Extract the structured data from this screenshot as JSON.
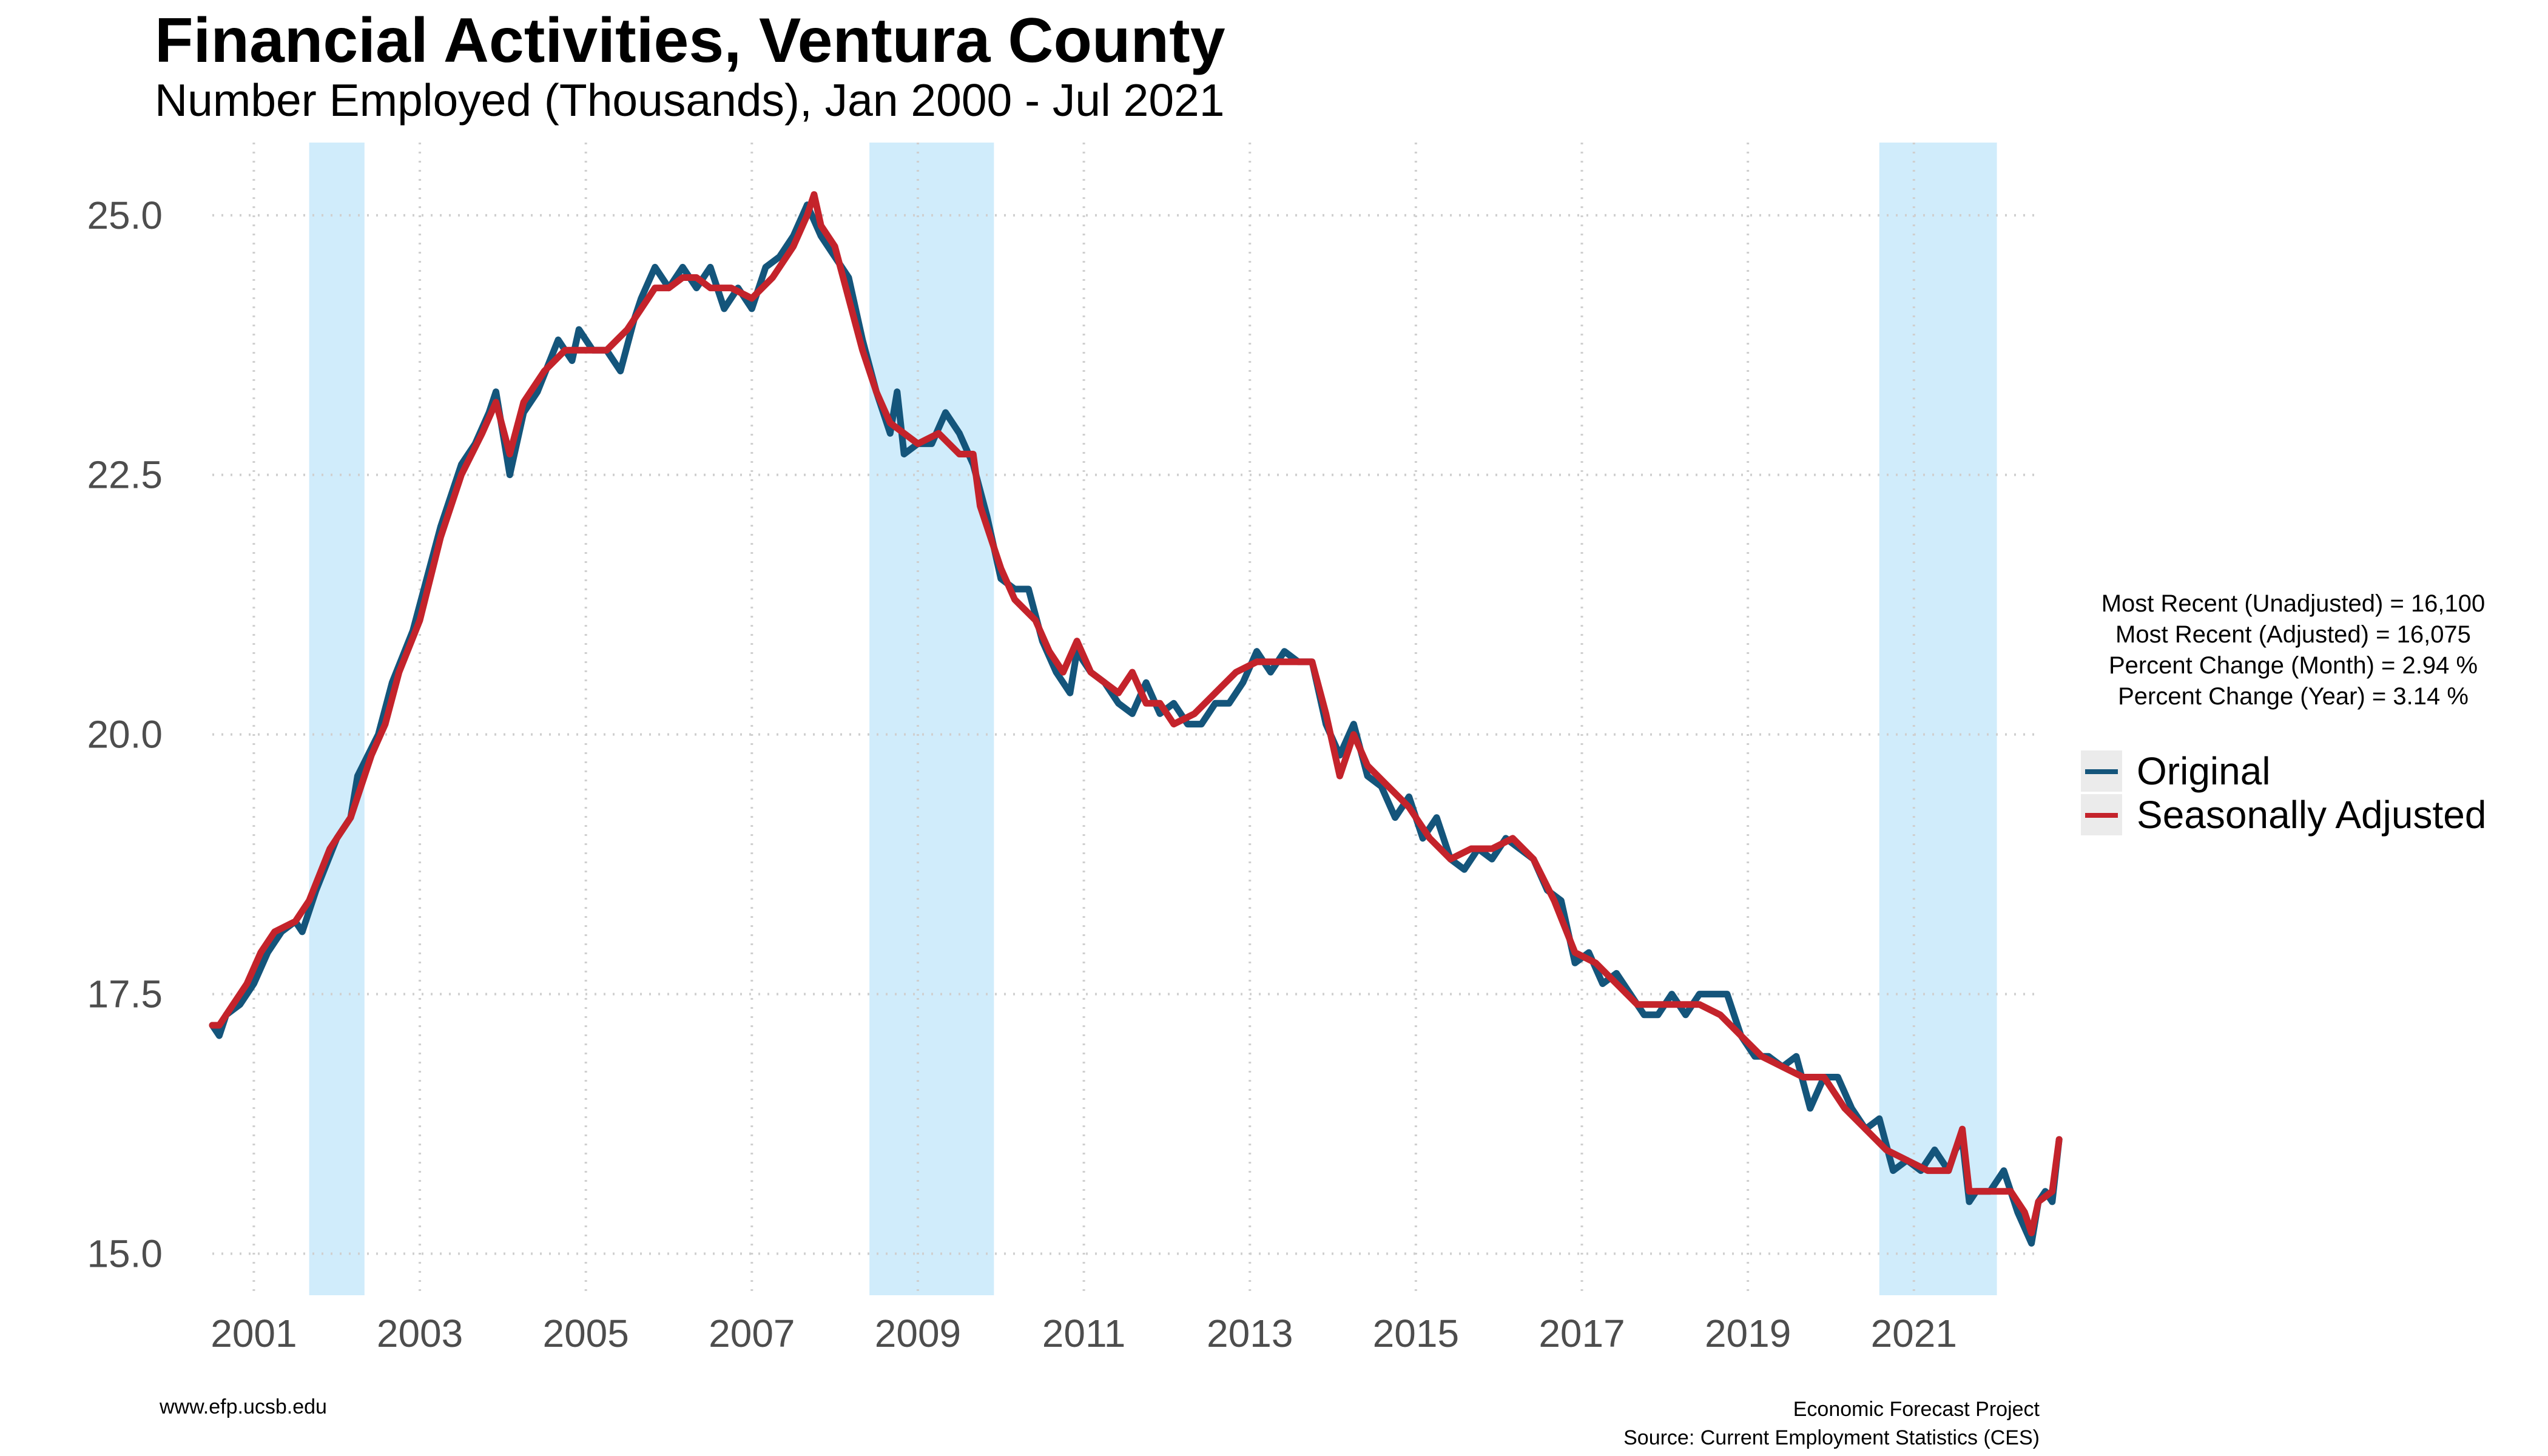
{
  "chart_data": {
    "type": "line",
    "title": "Financial Activities, Ventura County",
    "subtitle": "Number Employed (Thousands), Jan 2000 - Jul 2021",
    "ylim": [
      14.6,
      25.7
    ],
    "xlim": [
      "2000-01",
      "2022-01"
    ],
    "y_ticks": [
      "15.0",
      "17.5",
      "20.0",
      "22.5",
      "25.0"
    ],
    "y_tick_values": [
      15.0,
      17.5,
      20.0,
      22.5,
      25.0
    ],
    "x_ticks": [
      "2001",
      "2003",
      "2005",
      "2007",
      "2009",
      "2011",
      "2013",
      "2015",
      "2017",
      "2019",
      "2021"
    ],
    "grid": true,
    "legend_position": "right",
    "recession_shading": [
      {
        "start": "2001-03",
        "end": "2001-11"
      },
      {
        "start": "2007-12",
        "end": "2009-06"
      },
      {
        "start": "2020-02",
        "end": "2021-07"
      }
    ],
    "recession_color": "#d0ecfb",
    "series": [
      {
        "name": "Original",
        "color": "#14557b",
        "points": [
          [
            "2000-01",
            17.2
          ],
          [
            "2000-02",
            17.1
          ],
          [
            "2000-03",
            17.3
          ],
          [
            "2000-05",
            17.4
          ],
          [
            "2000-07",
            17.6
          ],
          [
            "2000-09",
            17.9
          ],
          [
            "2000-11",
            18.1
          ],
          [
            "2001-01",
            18.2
          ],
          [
            "2001-02",
            18.1
          ],
          [
            "2001-04",
            18.5
          ],
          [
            "2001-07",
            19.0
          ],
          [
            "2001-09",
            19.2
          ],
          [
            "2001-10",
            19.6
          ],
          [
            "2002-01",
            20.0
          ],
          [
            "2002-03",
            20.5
          ],
          [
            "2002-06",
            21.0
          ],
          [
            "2002-08",
            21.5
          ],
          [
            "2002-10",
            22.0
          ],
          [
            "2003-01",
            22.6
          ],
          [
            "2003-03",
            22.8
          ],
          [
            "2003-05",
            23.1
          ],
          [
            "2003-06",
            23.3
          ],
          [
            "2003-08",
            22.5
          ],
          [
            "2003-10",
            23.1
          ],
          [
            "2003-12",
            23.3
          ],
          [
            "2004-03",
            23.8
          ],
          [
            "2004-05",
            23.6
          ],
          [
            "2004-06",
            23.9
          ],
          [
            "2004-08",
            23.7
          ],
          [
            "2004-10",
            23.7
          ],
          [
            "2004-12",
            23.5
          ],
          [
            "2005-02",
            24.0
          ],
          [
            "2005-03",
            24.2
          ],
          [
            "2005-05",
            24.5
          ],
          [
            "2005-07",
            24.3
          ],
          [
            "2005-09",
            24.5
          ],
          [
            "2005-11",
            24.3
          ],
          [
            "2006-01",
            24.5
          ],
          [
            "2006-03",
            24.1
          ],
          [
            "2006-05",
            24.3
          ],
          [
            "2006-07",
            24.1
          ],
          [
            "2006-09",
            24.5
          ],
          [
            "2006-11",
            24.6
          ],
          [
            "2007-01",
            24.8
          ],
          [
            "2007-03",
            25.1
          ],
          [
            "2007-05",
            24.8
          ],
          [
            "2007-07",
            24.6
          ],
          [
            "2007-09",
            24.4
          ],
          [
            "2007-11",
            23.8
          ],
          [
            "2008-01",
            23.3
          ],
          [
            "2008-03",
            22.9
          ],
          [
            "2008-04",
            23.3
          ],
          [
            "2008-05",
            22.7
          ],
          [
            "2008-07",
            22.8
          ],
          [
            "2008-09",
            22.8
          ],
          [
            "2008-11",
            23.1
          ],
          [
            "2009-01",
            22.9
          ],
          [
            "2009-03",
            22.6
          ],
          [
            "2009-05",
            22.1
          ],
          [
            "2009-07",
            21.5
          ],
          [
            "2009-09",
            21.4
          ],
          [
            "2009-11",
            21.4
          ],
          [
            "2010-01",
            20.9
          ],
          [
            "2010-03",
            20.6
          ],
          [
            "2010-05",
            20.4
          ],
          [
            "2010-06",
            20.8
          ],
          [
            "2010-08",
            20.6
          ],
          [
            "2010-10",
            20.5
          ],
          [
            "2010-12",
            20.3
          ],
          [
            "2011-02",
            20.2
          ],
          [
            "2011-04",
            20.5
          ],
          [
            "2011-06",
            20.2
          ],
          [
            "2011-08",
            20.3
          ],
          [
            "2011-10",
            20.1
          ],
          [
            "2011-12",
            20.1
          ],
          [
            "2012-02",
            20.3
          ],
          [
            "2012-04",
            20.3
          ],
          [
            "2012-06",
            20.5
          ],
          [
            "2012-08",
            20.8
          ],
          [
            "2012-10",
            20.6
          ],
          [
            "2012-12",
            20.8
          ],
          [
            "2013-02",
            20.7
          ],
          [
            "2013-04",
            20.7
          ],
          [
            "2013-06",
            20.1
          ],
          [
            "2013-08",
            19.8
          ],
          [
            "2013-10",
            20.1
          ],
          [
            "2013-12",
            19.6
          ],
          [
            "2014-02",
            19.5
          ],
          [
            "2014-04",
            19.2
          ],
          [
            "2014-06",
            19.4
          ],
          [
            "2014-08",
            19.0
          ],
          [
            "2014-10",
            19.2
          ],
          [
            "2014-12",
            18.8
          ],
          [
            "2015-02",
            18.7
          ],
          [
            "2015-04",
            18.9
          ],
          [
            "2015-06",
            18.8
          ],
          [
            "2015-08",
            19.0
          ],
          [
            "2015-10",
            18.9
          ],
          [
            "2015-12",
            18.8
          ],
          [
            "2016-02",
            18.5
          ],
          [
            "2016-04",
            18.4
          ],
          [
            "2016-06",
            17.8
          ],
          [
            "2016-08",
            17.9
          ],
          [
            "2016-10",
            17.6
          ],
          [
            "2016-12",
            17.7
          ],
          [
            "2017-02",
            17.5
          ],
          [
            "2017-04",
            17.3
          ],
          [
            "2017-06",
            17.3
          ],
          [
            "2017-08",
            17.5
          ],
          [
            "2017-10",
            17.3
          ],
          [
            "2017-12",
            17.5
          ],
          [
            "2018-02",
            17.5
          ],
          [
            "2018-04",
            17.5
          ],
          [
            "2018-06",
            17.1
          ],
          [
            "2018-08",
            16.9
          ],
          [
            "2018-10",
            16.9
          ],
          [
            "2018-12",
            16.8
          ],
          [
            "2019-02",
            16.9
          ],
          [
            "2019-04",
            16.4
          ],
          [
            "2019-06",
            16.7
          ],
          [
            "2019-08",
            16.7
          ],
          [
            "2019-10",
            16.4
          ],
          [
            "2019-12",
            16.2
          ],
          [
            "2020-02",
            16.3
          ],
          [
            "2020-04",
            15.8
          ],
          [
            "2020-06",
            15.9
          ],
          [
            "2020-08",
            15.8
          ],
          [
            "2020-10",
            16.0
          ],
          [
            "2020-12",
            15.8
          ],
          [
            "2021-01",
            16.0
          ],
          [
            "2021-02",
            16.1
          ],
          [
            "2021-03",
            15.5
          ],
          [
            "2021-04",
            15.6
          ],
          [
            "2021-06",
            15.6
          ],
          [
            "2021-08",
            15.8
          ],
          [
            "2021-10",
            15.4
          ],
          [
            "2021-12",
            15.1
          ],
          [
            "2022-01",
            15.5
          ],
          [
            "2022-02",
            15.6
          ],
          [
            "2022-03",
            15.5
          ],
          [
            "2022-04",
            16.1
          ]
        ]
      },
      {
        "name": "Seasonally Adjusted",
        "color": "#c4232b",
        "points": [
          [
            "2000-01",
            17.2
          ],
          [
            "2000-02",
            17.2
          ],
          [
            "2000-04",
            17.4
          ],
          [
            "2000-06",
            17.6
          ],
          [
            "2000-08",
            17.9
          ],
          [
            "2000-10",
            18.1
          ],
          [
            "2001-01",
            18.2
          ],
          [
            "2001-03",
            18.4
          ],
          [
            "2001-06",
            18.9
          ],
          [
            "2001-09",
            19.2
          ],
          [
            "2001-12",
            19.8
          ],
          [
            "2002-02",
            20.1
          ],
          [
            "2002-04",
            20.6
          ],
          [
            "2002-07",
            21.1
          ],
          [
            "2002-10",
            21.9
          ],
          [
            "2003-01",
            22.5
          ],
          [
            "2003-04",
            22.9
          ],
          [
            "2003-06",
            23.2
          ],
          [
            "2003-08",
            22.7
          ],
          [
            "2003-10",
            23.2
          ],
          [
            "2004-01",
            23.5
          ],
          [
            "2004-04",
            23.7
          ],
          [
            "2004-07",
            23.7
          ],
          [
            "2004-10",
            23.7
          ],
          [
            "2005-01",
            23.9
          ],
          [
            "2005-03",
            24.1
          ],
          [
            "2005-05",
            24.3
          ],
          [
            "2005-07",
            24.3
          ],
          [
            "2005-09",
            24.4
          ],
          [
            "2005-11",
            24.4
          ],
          [
            "2006-01",
            24.3
          ],
          [
            "2006-04",
            24.3
          ],
          [
            "2006-07",
            24.2
          ],
          [
            "2006-10",
            24.4
          ],
          [
            "2007-01",
            24.7
          ],
          [
            "2007-03",
            25.0
          ],
          [
            "2007-04",
            25.2
          ],
          [
            "2007-05",
            24.9
          ],
          [
            "2007-07",
            24.7
          ],
          [
            "2007-09",
            24.2
          ],
          [
            "2007-11",
            23.7
          ],
          [
            "2008-01",
            23.3
          ],
          [
            "2008-03",
            23.0
          ],
          [
            "2008-05",
            22.9
          ],
          [
            "2008-07",
            22.8
          ],
          [
            "2008-10",
            22.9
          ],
          [
            "2009-01",
            22.7
          ],
          [
            "2009-03",
            22.7
          ],
          [
            "2009-04",
            22.2
          ],
          [
            "2009-07",
            21.6
          ],
          [
            "2009-09",
            21.3
          ],
          [
            "2009-12",
            21.1
          ],
          [
            "2010-02",
            20.8
          ],
          [
            "2010-04",
            20.6
          ],
          [
            "2010-06",
            20.9
          ],
          [
            "2010-08",
            20.6
          ],
          [
            "2010-10",
            20.5
          ],
          [
            "2010-12",
            20.4
          ],
          [
            "2011-02",
            20.6
          ],
          [
            "2011-04",
            20.3
          ],
          [
            "2011-06",
            20.3
          ],
          [
            "2011-08",
            20.1
          ],
          [
            "2011-11",
            20.2
          ],
          [
            "2012-02",
            20.4
          ],
          [
            "2012-05",
            20.6
          ],
          [
            "2012-08",
            20.7
          ],
          [
            "2012-11",
            20.7
          ],
          [
            "2013-02",
            20.7
          ],
          [
            "2013-04",
            20.7
          ],
          [
            "2013-06",
            20.2
          ],
          [
            "2013-08",
            19.6
          ],
          [
            "2013-10",
            20.0
          ],
          [
            "2013-12",
            19.7
          ],
          [
            "2014-03",
            19.5
          ],
          [
            "2014-06",
            19.3
          ],
          [
            "2014-09",
            19.0
          ],
          [
            "2014-12",
            18.8
          ],
          [
            "2015-03",
            18.9
          ],
          [
            "2015-06",
            18.9
          ],
          [
            "2015-09",
            19.0
          ],
          [
            "2015-12",
            18.8
          ],
          [
            "2016-03",
            18.4
          ],
          [
            "2016-06",
            17.9
          ],
          [
            "2016-09",
            17.8
          ],
          [
            "2016-12",
            17.6
          ],
          [
            "2017-03",
            17.4
          ],
          [
            "2017-06",
            17.4
          ],
          [
            "2017-09",
            17.4
          ],
          [
            "2017-12",
            17.4
          ],
          [
            "2018-03",
            17.3
          ],
          [
            "2018-06",
            17.1
          ],
          [
            "2018-09",
            16.9
          ],
          [
            "2018-12",
            16.8
          ],
          [
            "2019-03",
            16.7
          ],
          [
            "2019-06",
            16.7
          ],
          [
            "2019-09",
            16.4
          ],
          [
            "2019-12",
            16.2
          ],
          [
            "2020-03",
            16.0
          ],
          [
            "2020-06",
            15.9
          ],
          [
            "2020-09",
            15.8
          ],
          [
            "2020-12",
            15.8
          ],
          [
            "2021-02",
            16.2
          ],
          [
            "2021-03",
            15.6
          ],
          [
            "2021-06",
            15.6
          ],
          [
            "2021-09",
            15.6
          ],
          [
            "2021-11",
            15.4
          ],
          [
            "2021-12",
            15.2
          ],
          [
            "2022-01",
            15.5
          ],
          [
            "2022-03",
            15.6
          ],
          [
            "2022-04",
            16.1
          ]
        ]
      }
    ]
  },
  "stats": [
    "Most Recent (Unadjusted) = 16,100",
    "Most Recent (Adjusted) = 16,075",
    "Percent Change (Month) = 2.94 %",
    "Percent Change (Year) = 3.14 %"
  ],
  "legend": {
    "items": [
      {
        "label": "Original",
        "color": "#14557b"
      },
      {
        "label": "Seasonally Adjusted",
        "color": "#c4232b"
      }
    ]
  },
  "footer": {
    "left": "www.efp.ucsb.edu",
    "right_line1": "Economic Forecast Project",
    "right_line2": "Source: Current Employment Statistics (CES)"
  }
}
